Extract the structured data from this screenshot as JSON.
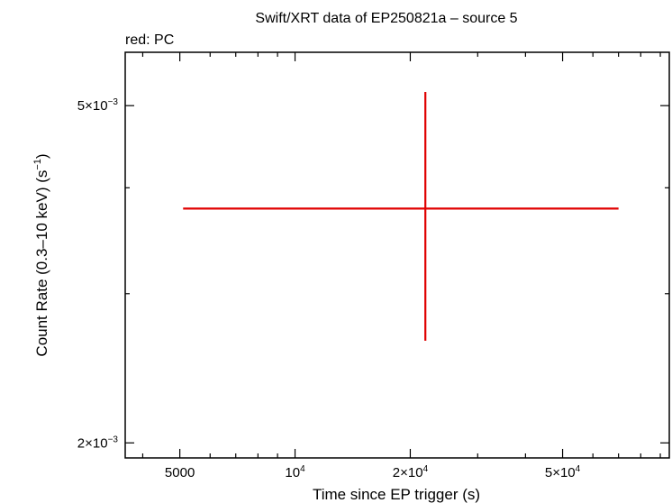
{
  "chart_data": {
    "type": "scatter",
    "title": "Swift/XRT data of EP250821a – source 5",
    "subtitle": "red: PC",
    "xlabel": "Time since EP trigger (s)",
    "ylabel_parts": [
      "Count Rate (0.3–10 keV) (s",
      "−1",
      ")"
    ],
    "x_scale": "log",
    "y_scale": "log",
    "xlim": [
      3600,
      95000
    ],
    "ylim": [
      0.00192,
      0.00578
    ],
    "x_ticks": [
      {
        "value": 5000,
        "base": "5000",
        "exp": ""
      },
      {
        "value": 10000,
        "base": "10",
        "exp": "4"
      },
      {
        "value": 20000,
        "base": "2×10",
        "exp": "4"
      },
      {
        "value": 50000,
        "base": "5×10",
        "exp": "4"
      }
    ],
    "x_minor_ticks": [
      4000,
      6000,
      7000,
      8000,
      9000,
      30000,
      40000,
      60000,
      70000,
      80000,
      90000
    ],
    "y_ticks": [
      {
        "value": 0.002,
        "base": "2×10",
        "exp": "−3"
      },
      {
        "value": 0.005,
        "base": "5×10",
        "exp": "−3"
      }
    ],
    "y_minor_ticks": [
      0.003,
      0.004
    ],
    "series": [
      {
        "color": "#e00000",
        "points": [
          {
            "x": 21900,
            "xlo": 5100,
            "xhi": 70000,
            "y": 0.00378,
            "ylo": 0.00264,
            "yhi": 0.00519
          }
        ]
      }
    ]
  }
}
